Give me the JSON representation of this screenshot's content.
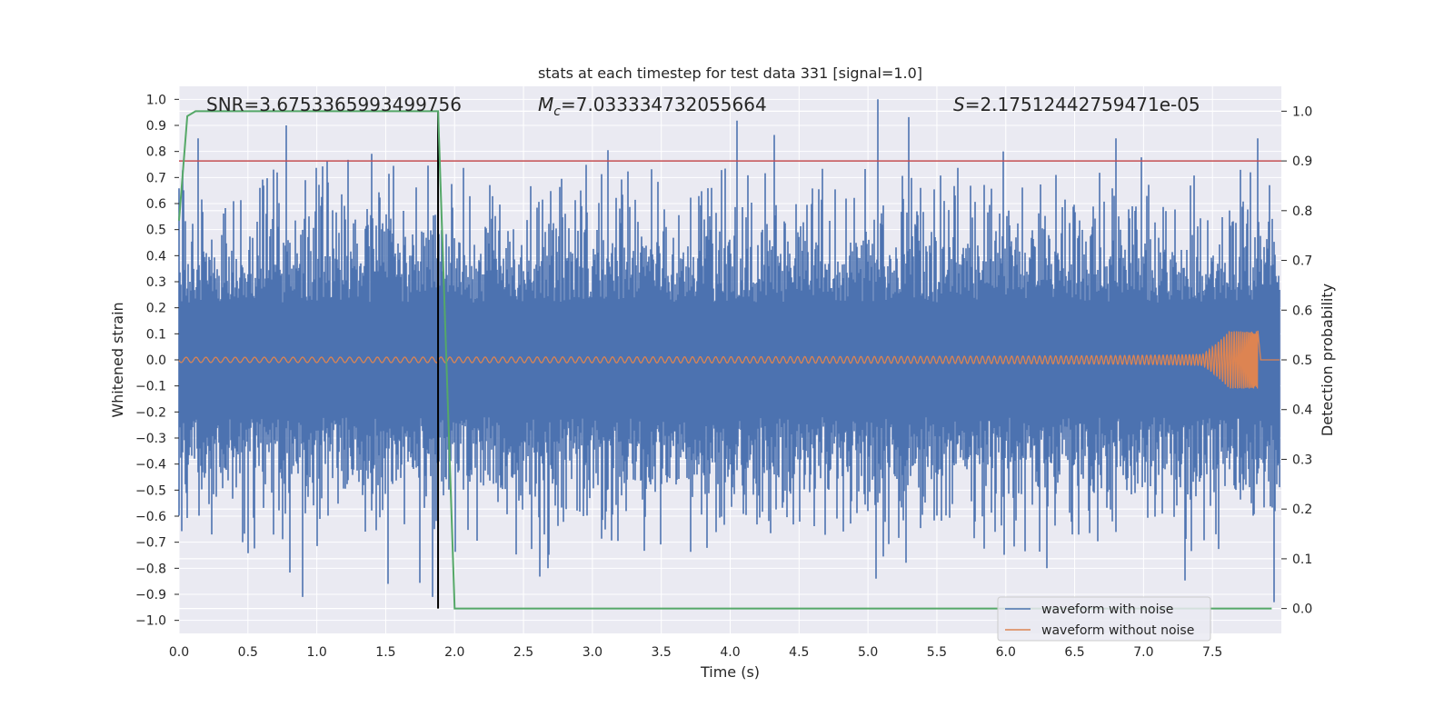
{
  "chart_data": {
    "type": "line",
    "title": "stats at each timestep for test data 331 [signal=1.0]",
    "xlabel": "Time (s)",
    "ylabel": "Whitened strain",
    "y2label": "Detection probability",
    "xlim": [
      0.0,
      8.0
    ],
    "ylim": [
      -1.05,
      1.05
    ],
    "y2lim": [
      -0.05,
      1.05
    ],
    "xticks": [
      "0.0",
      "0.5",
      "1.0",
      "1.5",
      "2.0",
      "2.5",
      "3.0",
      "3.5",
      "4.0",
      "4.5",
      "5.0",
      "5.5",
      "6.0",
      "6.5",
      "7.0",
      "7.5"
    ],
    "yticks": [
      "1.0",
      "0.9",
      "0.8",
      "0.7",
      "0.6",
      "0.5",
      "0.4",
      "0.3",
      "0.2",
      "0.1",
      "0.0",
      "−0.1",
      "−0.2",
      "−0.3",
      "−0.4",
      "−0.5",
      "−0.6",
      "−0.7",
      "−0.8",
      "−0.9",
      "−1.0"
    ],
    "y2ticks": [
      "1.0",
      "0.9",
      "0.8",
      "0.7",
      "0.6",
      "0.5",
      "0.4",
      "0.3",
      "0.2",
      "0.1",
      "0.0"
    ],
    "grid": true,
    "annotations": {
      "snr": "SNR=3.6753365993499756",
      "mc_symbol": "M",
      "mc_sub": "c",
      "mc_value": "=7.033334732055664",
      "s_symbol": "S",
      "s_value": "=2.17512442759471e-05"
    },
    "legend": {
      "position": "lower-right",
      "entries": [
        {
          "label": "waveform with noise",
          "color": "#4c72b0"
        },
        {
          "label": "waveform without noise",
          "color": "#dd8452"
        }
      ]
    },
    "series": [
      {
        "name": "waveform with noise",
        "axis": "left",
        "color": "#4c72b0",
        "kind": "noise",
        "envelope_typical": 0.45,
        "notable_peaks": [
          {
            "x": 0.14,
            "y": 0.85
          },
          {
            "x": 0.78,
            "y": 0.9
          },
          {
            "x": 1.88,
            "y": 0.82
          },
          {
            "x": 5.07,
            "y": 1.0
          },
          {
            "x": 6.8,
            "y": 0.85
          },
          {
            "x": 7.83,
            "y": 0.85
          },
          {
            "x": 0.9,
            "y": -0.91
          },
          {
            "x": 1.52,
            "y": -0.86
          },
          {
            "x": 1.84,
            "y": -0.91
          },
          {
            "x": 2.68,
            "y": -0.8
          },
          {
            "x": 5.06,
            "y": -0.84
          },
          {
            "x": 6.3,
            "y": -0.8
          },
          {
            "x": 7.95,
            "y": -0.93
          }
        ]
      },
      {
        "name": "waveform without noise",
        "axis": "left",
        "color": "#dd8452",
        "kind": "chirp",
        "amp_start": 0.01,
        "amp_peak": 0.11,
        "merger_time": 7.83
      },
      {
        "name": "detection probability",
        "axis": "right",
        "color": "#55a868",
        "x": [
          0.0,
          0.06,
          0.12,
          1.88,
          2.0,
          7.93
        ],
        "y": [
          0.78,
          0.99,
          1.0,
          1.0,
          0.0,
          0.0
        ]
      }
    ],
    "reference_lines": [
      {
        "orientation": "horizontal",
        "axis": "right",
        "value": 0.9,
        "color": "#c44e52"
      },
      {
        "orientation": "vertical",
        "axis": "x",
        "value": 1.88,
        "color": "#000000",
        "y_from_right": 0.0,
        "y_to_right": 1.0
      }
    ]
  }
}
